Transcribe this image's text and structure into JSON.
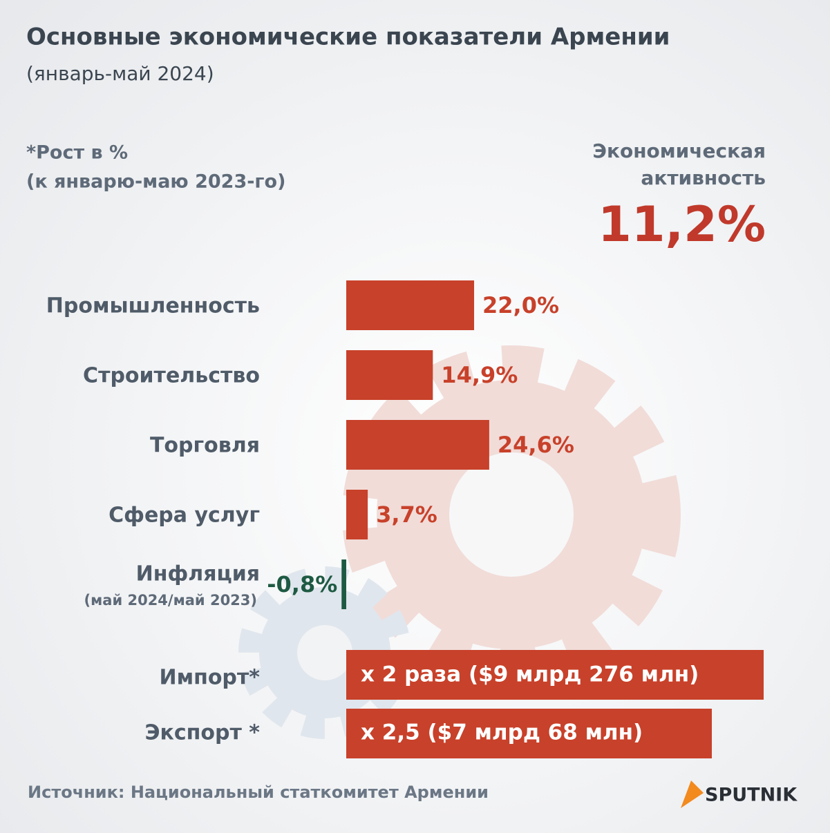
{
  "title": "Основные экономические показатели Армении",
  "subtitle": "(январь-май 2024)",
  "note": [
    "*Рост в %",
    "(к январю-маю 2023-го)"
  ],
  "activity": {
    "label": [
      "Экономическая",
      "активность"
    ],
    "value": "11,2%"
  },
  "chart_data": {
    "type": "bar",
    "categories": [
      "Промышленность",
      "Строительство",
      "Торговля",
      "Сфера услуг",
      "Инфляция"
    ],
    "values": [
      22.0,
      14.9,
      24.6,
      3.7,
      -0.8
    ],
    "value_labels": [
      "22,0%",
      "14,9%",
      "24,6%",
      "3,7%",
      "-0,8%"
    ],
    "colors": [
      "#c8412a",
      "#c8412a",
      "#c8412a",
      "#c8412a",
      "#1e5a43"
    ]
  },
  "inflation_note": "(май 2024/май 2023)",
  "trade": [
    {
      "label": "Импорт*",
      "text": "x 2 раза ($9 млрд 276 млн)"
    },
    {
      "label": "Экспорт *",
      "text": "x 2,5 ($7 млрд 68 млн)"
    }
  ],
  "source": "Источник: Национальный статкомитет Армении",
  "logo": "SPUTNIK"
}
